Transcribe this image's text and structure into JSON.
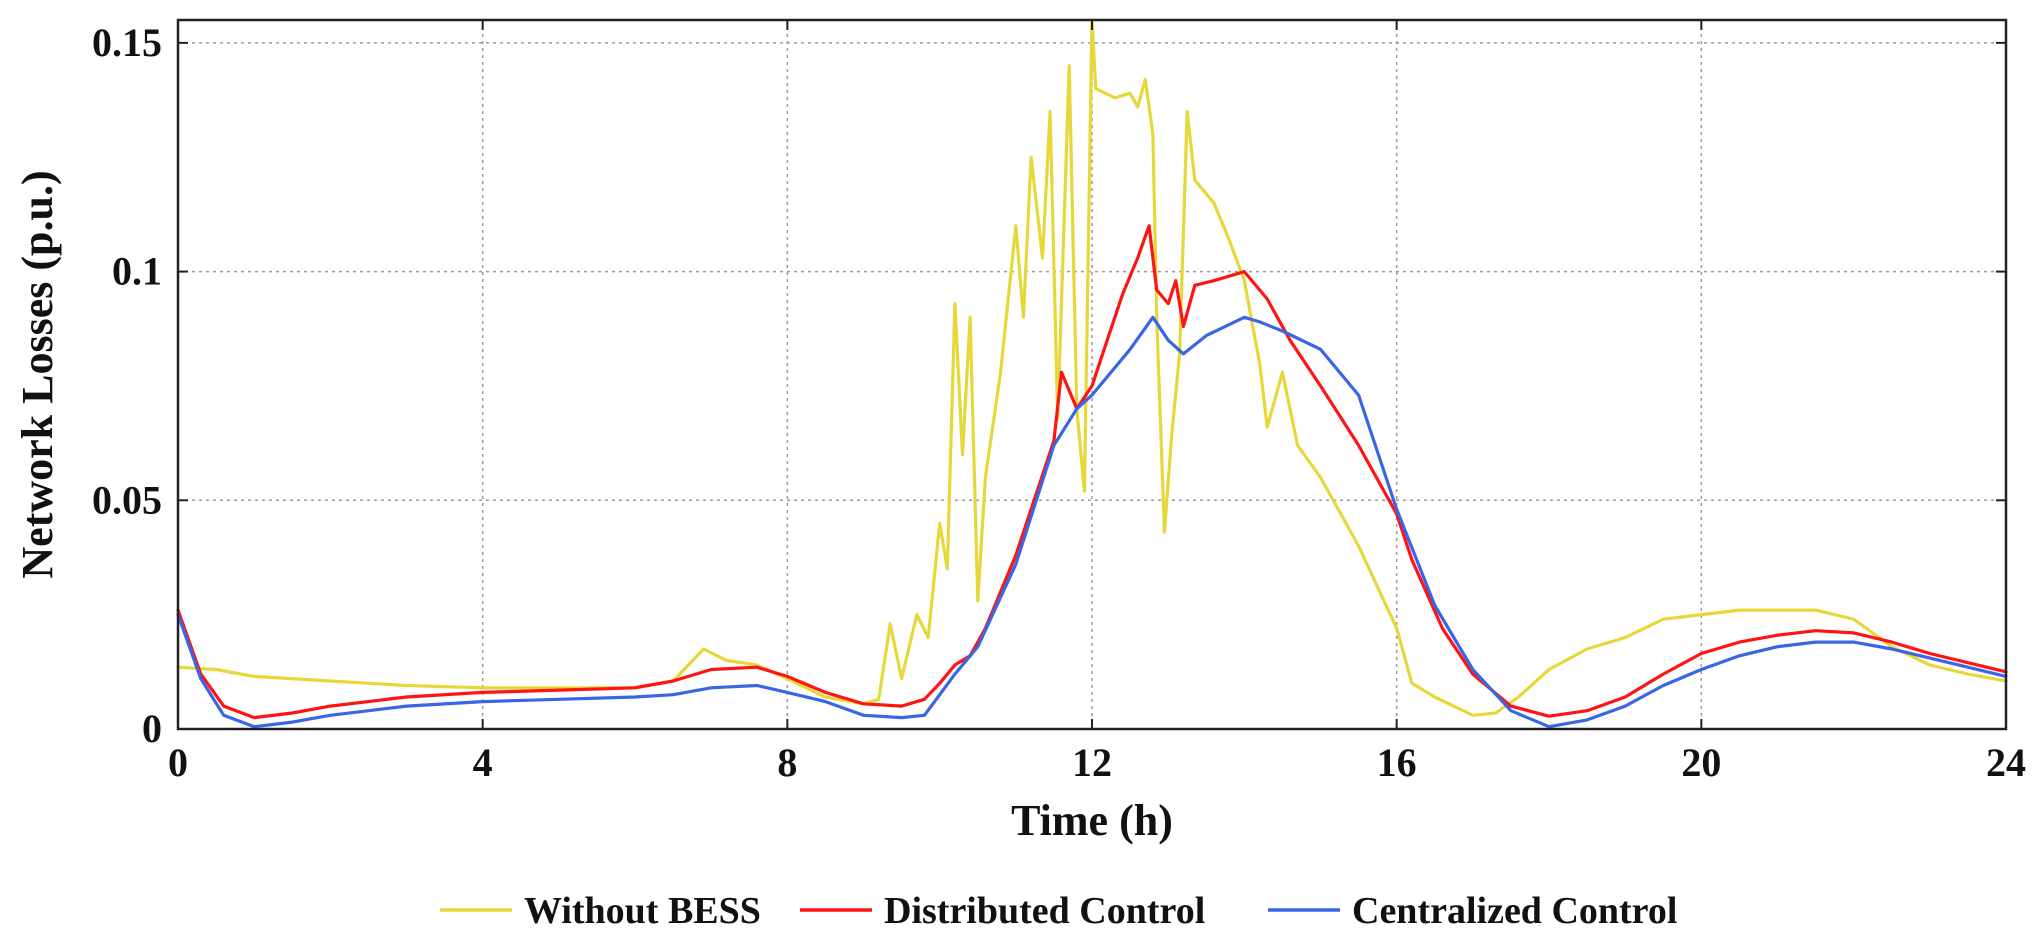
{
  "chart_data": {
    "type": "line",
    "title": "",
    "xlabel": "Time (h)",
    "ylabel": "Network Losses (p.u.)",
    "xlim": [
      0,
      24
    ],
    "ylim": [
      0,
      0.155
    ],
    "xticks": [
      0,
      4,
      8,
      12,
      16,
      20,
      24
    ],
    "xtick_labels": [
      "0",
      "4",
      "8",
      "12",
      "16",
      "20",
      "24"
    ],
    "yticks": [
      0,
      0.05,
      0.1,
      0.15
    ],
    "ytick_labels": [
      "0",
      "0.05",
      "0.1",
      "0.15"
    ],
    "grid": true,
    "legend_position": "bottom-center",
    "series": [
      {
        "name": "Without BESS",
        "color": "#e6d83a",
        "points": [
          [
            0,
            0.0135
          ],
          [
            0.5,
            0.013
          ],
          [
            1,
            0.0115
          ],
          [
            2,
            0.0105
          ],
          [
            3,
            0.0095
          ],
          [
            4,
            0.009
          ],
          [
            5,
            0.009
          ],
          [
            6,
            0.009
          ],
          [
            6.5,
            0.0105
          ],
          [
            6.9,
            0.0175
          ],
          [
            7.2,
            0.015
          ],
          [
            7.6,
            0.014
          ],
          [
            8,
            0.011
          ],
          [
            8.5,
            0.007
          ],
          [
            9,
            0.0055
          ],
          [
            9.2,
            0.0065
          ],
          [
            9.35,
            0.023
          ],
          [
            9.5,
            0.011
          ],
          [
            9.7,
            0.025
          ],
          [
            9.85,
            0.02
          ],
          [
            10,
            0.045
          ],
          [
            10.1,
            0.035
          ],
          [
            10.2,
            0.093
          ],
          [
            10.3,
            0.06
          ],
          [
            10.4,
            0.09
          ],
          [
            10.5,
            0.028
          ],
          [
            10.6,
            0.055
          ],
          [
            10.8,
            0.078
          ],
          [
            11,
            0.11
          ],
          [
            11.1,
            0.09
          ],
          [
            11.2,
            0.125
          ],
          [
            11.35,
            0.103
          ],
          [
            11.45,
            0.135
          ],
          [
            11.55,
            0.068
          ],
          [
            11.7,
            0.145
          ],
          [
            11.8,
            0.07
          ],
          [
            11.9,
            0.052
          ],
          [
            12,
            0.155
          ],
          [
            12.05,
            0.14
          ],
          [
            12.3,
            0.138
          ],
          [
            12.5,
            0.139
          ],
          [
            12.6,
            0.136
          ],
          [
            12.7,
            0.142
          ],
          [
            12.8,
            0.13
          ],
          [
            12.85,
            0.09
          ],
          [
            12.95,
            0.043
          ],
          [
            13.05,
            0.065
          ],
          [
            13.15,
            0.082
          ],
          [
            13.25,
            0.135
          ],
          [
            13.35,
            0.12
          ],
          [
            13.6,
            0.115
          ],
          [
            13.8,
            0.107
          ],
          [
            14,
            0.098
          ],
          [
            14.2,
            0.08
          ],
          [
            14.3,
            0.066
          ],
          [
            14.5,
            0.078
          ],
          [
            14.7,
            0.062
          ],
          [
            15,
            0.055
          ],
          [
            15.5,
            0.04
          ],
          [
            16,
            0.022
          ],
          [
            16.2,
            0.01
          ],
          [
            16.5,
            0.007
          ],
          [
            17,
            0.003
          ],
          [
            17.3,
            0.0035
          ],
          [
            17.6,
            0.007
          ],
          [
            18,
            0.013
          ],
          [
            18.5,
            0.0175
          ],
          [
            19,
            0.02
          ],
          [
            19.5,
            0.024
          ],
          [
            20,
            0.025
          ],
          [
            20.5,
            0.026
          ],
          [
            21,
            0.026
          ],
          [
            21.5,
            0.026
          ],
          [
            22,
            0.024
          ],
          [
            22.5,
            0.018
          ],
          [
            23,
            0.014
          ],
          [
            23.5,
            0.012
          ],
          [
            24,
            0.0105
          ]
        ]
      },
      {
        "name": "Distributed Control",
        "color": "#ff1414",
        "points": [
          [
            0,
            0.026
          ],
          [
            0.3,
            0.012
          ],
          [
            0.6,
            0.005
          ],
          [
            1,
            0.0025
          ],
          [
            1.5,
            0.0035
          ],
          [
            2,
            0.005
          ],
          [
            3,
            0.007
          ],
          [
            4,
            0.008
          ],
          [
            5,
            0.0085
          ],
          [
            6,
            0.009
          ],
          [
            6.5,
            0.0105
          ],
          [
            7,
            0.013
          ],
          [
            7.6,
            0.0135
          ],
          [
            8,
            0.0115
          ],
          [
            8.5,
            0.008
          ],
          [
            9,
            0.0055
          ],
          [
            9.5,
            0.005
          ],
          [
            9.8,
            0.0065
          ],
          [
            10,
            0.01
          ],
          [
            10.2,
            0.014
          ],
          [
            10.4,
            0.016
          ],
          [
            10.6,
            0.022
          ],
          [
            11,
            0.038
          ],
          [
            11.5,
            0.063
          ],
          [
            11.6,
            0.078
          ],
          [
            11.8,
            0.07
          ],
          [
            12,
            0.075
          ],
          [
            12.2,
            0.085
          ],
          [
            12.4,
            0.095
          ],
          [
            12.6,
            0.103
          ],
          [
            12.75,
            0.11
          ],
          [
            12.85,
            0.096
          ],
          [
            13,
            0.093
          ],
          [
            13.1,
            0.098
          ],
          [
            13.2,
            0.088
          ],
          [
            13.35,
            0.097
          ],
          [
            13.6,
            0.098
          ],
          [
            14,
            0.1
          ],
          [
            14.3,
            0.094
          ],
          [
            14.6,
            0.085
          ],
          [
            15,
            0.075
          ],
          [
            15.5,
            0.062
          ],
          [
            16,
            0.047
          ],
          [
            16.2,
            0.037
          ],
          [
            16.6,
            0.022
          ],
          [
            17,
            0.012
          ],
          [
            17.5,
            0.005
          ],
          [
            18,
            0.0028
          ],
          [
            18.5,
            0.004
          ],
          [
            19,
            0.007
          ],
          [
            19.5,
            0.012
          ],
          [
            20,
            0.0165
          ],
          [
            20.5,
            0.019
          ],
          [
            21,
            0.0205
          ],
          [
            21.5,
            0.0215
          ],
          [
            22,
            0.021
          ],
          [
            22.5,
            0.019
          ],
          [
            23,
            0.0165
          ],
          [
            23.5,
            0.0145
          ],
          [
            24,
            0.0125
          ]
        ]
      },
      {
        "name": "Centralized Control",
        "color": "#3a66e6",
        "points": [
          [
            0,
            0.025
          ],
          [
            0.3,
            0.011
          ],
          [
            0.6,
            0.003
          ],
          [
            1,
            0.0005
          ],
          [
            1.5,
            0.0015
          ],
          [
            2,
            0.003
          ],
          [
            3,
            0.005
          ],
          [
            4,
            0.006
          ],
          [
            5,
            0.0065
          ],
          [
            6,
            0.007
          ],
          [
            6.5,
            0.0075
          ],
          [
            7,
            0.009
          ],
          [
            7.6,
            0.0095
          ],
          [
            8,
            0.008
          ],
          [
            8.5,
            0.006
          ],
          [
            9,
            0.003
          ],
          [
            9.5,
            0.0025
          ],
          [
            9.8,
            0.003
          ],
          [
            10,
            0.0075
          ],
          [
            10.2,
            0.012
          ],
          [
            10.5,
            0.018
          ],
          [
            11,
            0.036
          ],
          [
            11.5,
            0.062
          ],
          [
            11.8,
            0.07
          ],
          [
            12,
            0.073
          ],
          [
            12.5,
            0.083
          ],
          [
            12.8,
            0.09
          ],
          [
            13,
            0.085
          ],
          [
            13.2,
            0.082
          ],
          [
            13.5,
            0.086
          ],
          [
            14,
            0.09
          ],
          [
            14.2,
            0.089
          ],
          [
            14.5,
            0.087
          ],
          [
            15,
            0.083
          ],
          [
            15.5,
            0.073
          ],
          [
            16,
            0.048
          ],
          [
            16.5,
            0.027
          ],
          [
            17,
            0.013
          ],
          [
            17.5,
            0.004
          ],
          [
            18,
            0.0005
          ],
          [
            18.5,
            0.002
          ],
          [
            19,
            0.005
          ],
          [
            19.5,
            0.0095
          ],
          [
            20,
            0.013
          ],
          [
            20.5,
            0.016
          ],
          [
            21,
            0.018
          ],
          [
            21.5,
            0.019
          ],
          [
            22,
            0.019
          ],
          [
            22.5,
            0.0175
          ],
          [
            23,
            0.0155
          ],
          [
            23.5,
            0.0135
          ],
          [
            24,
            0.0115
          ]
        ]
      }
    ]
  }
}
